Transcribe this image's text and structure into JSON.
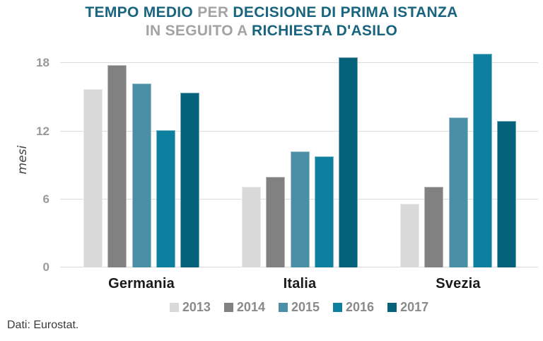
{
  "title": {
    "l1_part1": "TEMPO MEDIO ",
    "l1_part2": "PER ",
    "l1_part3": "DECISIONE DI PRIMA ISTANZA",
    "l2_part1": "IN SEGUITO A ",
    "l2_part2": "RICHIESTA D'ASILO"
  },
  "colors": {
    "title_teal": "#19647f",
    "title_gray": "#a3a3a3",
    "tick_gray": "#999999",
    "legend_gray": "#8a8a8a",
    "grid": "#dcdcdc"
  },
  "source": "Dati: Eurostat.",
  "chart_data": {
    "type": "bar",
    "title": "TEMPO MEDIO PER DECISIONE DI PRIMA ISTANZA IN SEGUITO A RICHIESTA D'ASILO",
    "xlabel": "",
    "ylabel": "mesi",
    "categories": [
      "Germania",
      "Italia",
      "Svezia"
    ],
    "series": [
      {
        "name": "2013",
        "color": "#d9d9d9",
        "values": [
          15.7,
          7.1,
          5.6
        ]
      },
      {
        "name": "2014",
        "color": "#818181",
        "values": [
          17.8,
          8.0,
          7.1
        ]
      },
      {
        "name": "2015",
        "color": "#4a8fa5",
        "values": [
          16.2,
          10.2,
          13.2
        ]
      },
      {
        "name": "2016",
        "color": "#0d7f9f",
        "values": [
          12.1,
          9.8,
          18.8
        ]
      },
      {
        "name": "2017",
        "color": "#06617b",
        "values": [
          15.4,
          18.5,
          12.9
        ]
      }
    ],
    "yticks": [
      0,
      6,
      12,
      18
    ],
    "ylim": [
      0,
      19.2
    ],
    "grid": true,
    "legend_position": "bottom"
  }
}
